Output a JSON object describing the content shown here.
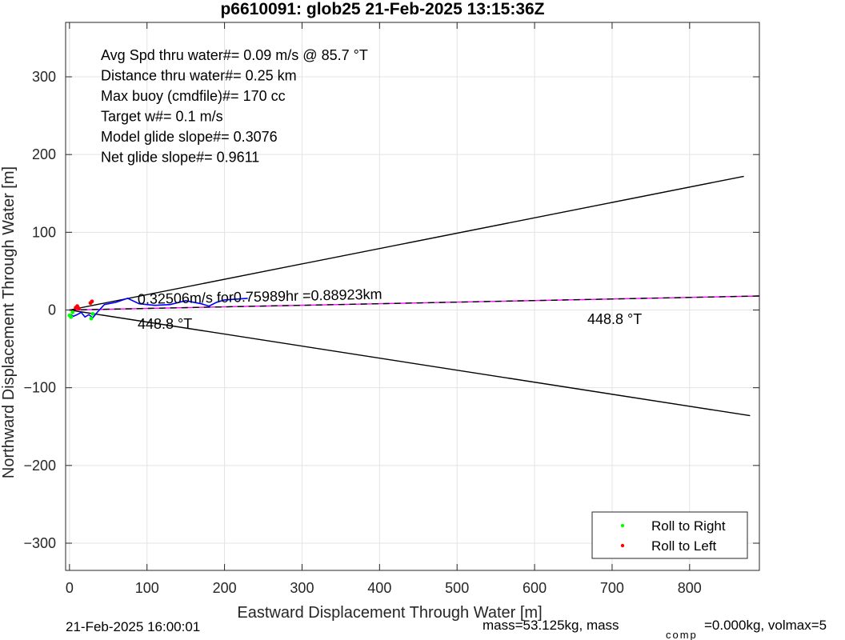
{
  "chart_data": {
    "type": "line",
    "title": "p6610091: glob25 21-Feb-2025 13:15:36Z",
    "xlabel": "Eastward Displacement Through Water [m]",
    "ylabel": "Northward Displacement Through Water [m]",
    "xlim": [
      -5,
      890
    ],
    "ylim": [
      -335,
      370
    ],
    "xticks": [
      0,
      100,
      200,
      300,
      400,
      500,
      600,
      700,
      800
    ],
    "yticks": [
      -300,
      -200,
      -100,
      0,
      100,
      200,
      300
    ],
    "grid": true,
    "legend": {
      "placement": "bottom-right",
      "entries": [
        {
          "label": "Roll to Right",
          "color": "#00ff00"
        },
        {
          "label": "Roll to Left",
          "color": "#ff0000"
        }
      ]
    },
    "stats_text": [
      "Avg Spd thru water#=  0.09 m/s @  85.7        °T",
      "Distance thru water#=  0.25 km",
      "Max buoy (cmdfile)#= 170 cc",
      "Target w#= 0.1 m/s",
      "Model glide slope#= 0.3076",
      "Net glide slope#= 0.9611"
    ],
    "annotations": {
      "segment": "0.32506m/s for0.75989hr =0.88923km",
      "heading_near": "448.8  °T",
      "heading_far": "448.8  °T"
    },
    "footer": {
      "timestamp": "21-Feb-2025 16:00:01",
      "mass_main": "mass=53.125kg, mass",
      "mass_sub": "comp",
      "mass_tail": "=0.000kg, volmax=5"
    },
    "series": [
      {
        "name": "cone upper",
        "color": "#000000",
        "style": "solid",
        "x": [
          0,
          870
        ],
        "y": [
          0,
          172
        ]
      },
      {
        "name": "cone lower",
        "color": "#000000",
        "style": "solid",
        "x": [
          0,
          878
        ],
        "y": [
          0,
          -136
        ]
      },
      {
        "name": "mean heading",
        "color": "#ff00ff",
        "style": "solid",
        "x": [
          0,
          890
        ],
        "y": [
          0,
          18
        ]
      },
      {
        "name": "mean heading dashed",
        "color": "#000000",
        "style": "dashed",
        "x": [
          0,
          890
        ],
        "y": [
          0,
          18
        ]
      },
      {
        "name": "track",
        "color": "#0000ff",
        "style": "solid",
        "x": [
          0,
          5,
          10,
          15,
          20,
          25,
          30,
          35,
          45,
          60,
          75,
          90,
          110,
          130,
          150,
          160,
          170,
          180,
          190,
          200,
          215,
          230
        ],
        "y": [
          -5,
          -8,
          -6,
          -3,
          -9,
          -6,
          -10,
          -4,
          7,
          10,
          15,
          8,
          6,
          7,
          12,
          10,
          8,
          5,
          10,
          13,
          14,
          15
        ]
      }
    ],
    "roll_right_points": {
      "x": [
        0,
        2,
        4,
        28,
        30
      ],
      "y": [
        -7,
        -9,
        -3,
        -11,
        -5
      ]
    },
    "roll_left_points": {
      "x": [
        8,
        10,
        12,
        27,
        29
      ],
      "y": [
        3,
        5,
        2,
        9,
        11
      ]
    }
  }
}
